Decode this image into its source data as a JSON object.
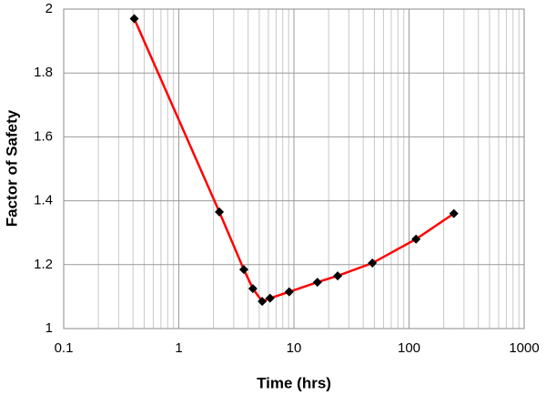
{
  "chart_data": {
    "type": "line",
    "x_label": "Time (hrs)",
    "y_label": "Factor of Safety",
    "x": [
      0.41,
      2.25,
      3.67,
      4.4,
      5.3,
      6.2,
      9.1,
      16,
      24,
      48,
      115,
      245
    ],
    "series": [
      {
        "color": "#ff0000",
        "marker_color": "#000000",
        "values": [
          1.97,
          1.365,
          1.185,
          1.125,
          1.085,
          1.095,
          1.115,
          1.145,
          1.165,
          1.205,
          1.28,
          1.36
        ]
      }
    ],
    "xlim": [
      0.1,
      1000
    ],
    "xticks": [
      0.1,
      1,
      10,
      100,
      1000
    ],
    "x_log": true,
    "ylim": [
      1,
      2
    ],
    "yticks": [
      1,
      1.2,
      1.4,
      1.6,
      1.8,
      2
    ],
    "grid": true
  }
}
